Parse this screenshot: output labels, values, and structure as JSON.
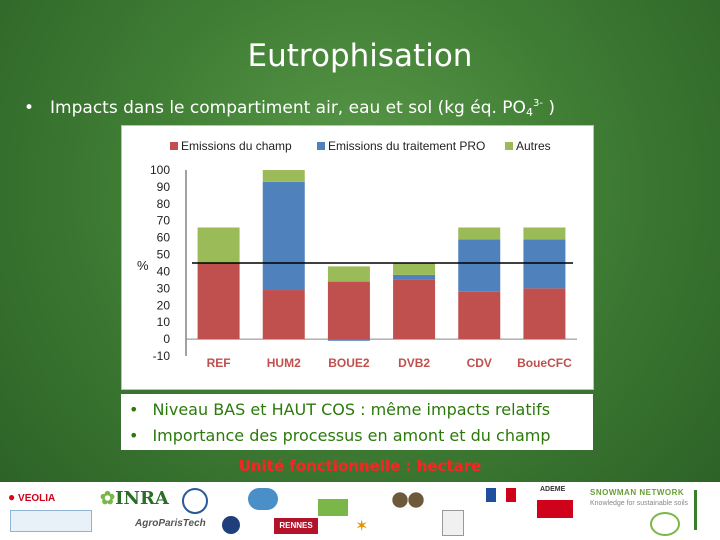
{
  "slide": {
    "title": "Eutrophisation",
    "bullet_pre": "Impacts dans le compartiment air, eau et sol (kg éq. PO",
    "bullet_sub": "4",
    "bullet_sup": "3-",
    "bullet_post": " )",
    "notes": [
      "Niveau  BAS et HAUT COS : même impacts relatifs",
      "Importance des processus en amont et du champ"
    ],
    "caption": "Unité fonctionnelle : hectare"
  },
  "logos": {
    "veolia": "VEOLIA",
    "inra": "INRA",
    "agroparistech": "AgroParisTech",
    "rennes": "RENNES",
    "ademe": "ADEME",
    "snowman": "SNOWMAN NETWORK",
    "snowman_tag": "Knowledge for sustainable soils"
  },
  "chart_data": {
    "type": "bar",
    "stacked": true,
    "categories": [
      "REF",
      "HUM2",
      "BOUE2",
      "DVB2",
      "CDV",
      "BoueCFC"
    ],
    "series": [
      {
        "name": "Emissions du champ",
        "color": "#c0504d",
        "values": [
          45,
          29,
          34,
          35,
          28,
          30
        ]
      },
      {
        "name": "Emissions du traitement PRO",
        "color": "#4f81bd",
        "values": [
          0,
          64,
          -1,
          3,
          31,
          29
        ]
      },
      {
        "name": "Autres",
        "color": "#9bbb59",
        "values": [
          21,
          7,
          9,
          7,
          7,
          7
        ]
      }
    ],
    "reference_line": 45,
    "ylabel": "%",
    "ylim": [
      -10,
      100
    ],
    "yticks": [
      100,
      90,
      80,
      70,
      60,
      50,
      40,
      30,
      20,
      10,
      0,
      -10
    ],
    "legend_position": "top",
    "grid": false
  }
}
